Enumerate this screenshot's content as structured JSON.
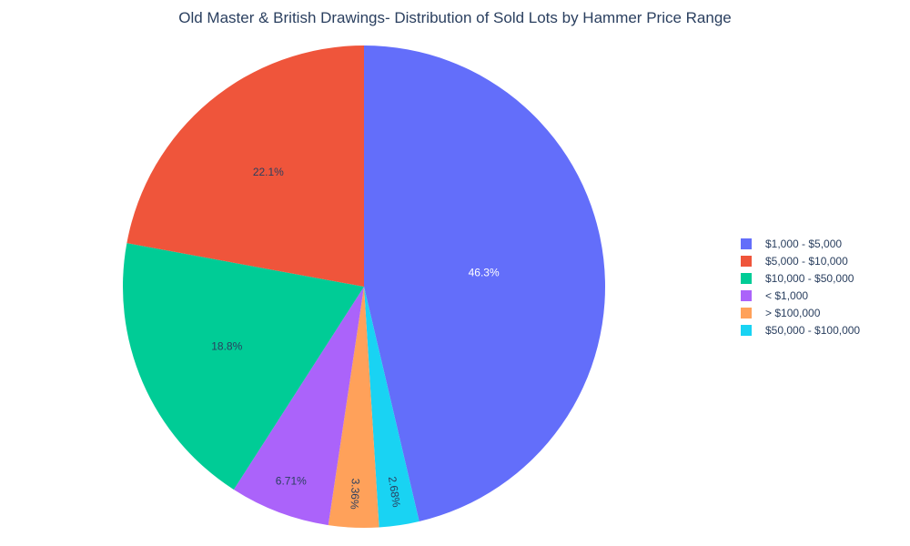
{
  "chart_data": {
    "type": "pie",
    "title": "Old Master & British Drawings- Distribution of Sold Lots by Hammer Price Range",
    "legend_position": "right",
    "slices": [
      {
        "label": "$1,000 - $5,000",
        "percent": 46.3,
        "display": "46.3%",
        "color": "#636efa",
        "label_color": "#ffffff"
      },
      {
        "label": "$50,000 - $100,000",
        "percent": 2.68,
        "display": "2.68%",
        "color": "#19d3f3",
        "label_color": "#2a3f5f"
      },
      {
        "label": "> $100,000",
        "percent": 3.36,
        "display": "3.36%",
        "color": "#ffa15a",
        "label_color": "#2a3f5f"
      },
      {
        "label": "< $1,000",
        "percent": 6.71,
        "display": "6.71%",
        "color": "#ab63fa",
        "label_color": "#2a3f5f"
      },
      {
        "label": "$10,000 - $50,000",
        "percent": 18.8,
        "display": "18.8%",
        "color": "#00cc96",
        "label_color": "#2a3f5f"
      },
      {
        "label": "$5,000 - $10,000",
        "percent": 22.1,
        "display": "22.1%",
        "color": "#ef553b",
        "label_color": "#2a3f5f"
      }
    ],
    "legend_order": [
      "$1,000 - $5,000",
      "$5,000 - $10,000",
      "$10,000 - $50,000",
      "< $1,000",
      "> $100,000",
      "$50,000 - $100,000"
    ]
  }
}
